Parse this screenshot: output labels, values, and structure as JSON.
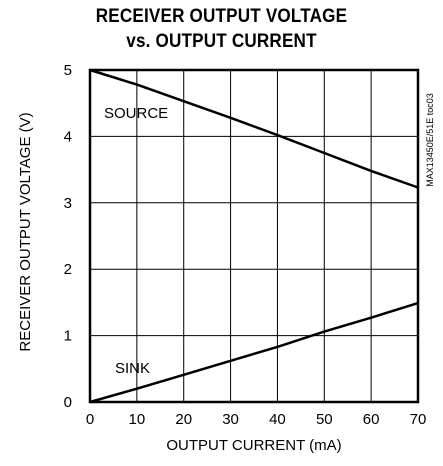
{
  "chart_data": {
    "type": "line",
    "title": [
      "RECEIVER OUTPUT VOLTAGE",
      "vs. OUTPUT CURRENT"
    ],
    "xlabel": "OUTPUT CURRENT (mA)",
    "ylabel": "RECEIVER OUTPUT VOLTAGE (V)",
    "xlim": [
      0,
      70
    ],
    "ylim": [
      0,
      5
    ],
    "x_ticks": [
      0,
      10,
      20,
      30,
      40,
      50,
      60,
      70
    ],
    "y_ticks": [
      0,
      1,
      2,
      3,
      4,
      5
    ],
    "grid": true,
    "series": [
      {
        "name": "SOURCE",
        "x": [
          0,
          10,
          20,
          30,
          40,
          50,
          60,
          70
        ],
        "y": [
          5.0,
          4.78,
          4.53,
          4.28,
          4.02,
          3.75,
          3.48,
          3.23
        ]
      },
      {
        "name": "SINK",
        "x": [
          0,
          10,
          20,
          30,
          40,
          50,
          60,
          70
        ],
        "y": [
          0.0,
          0.2,
          0.41,
          0.62,
          0.83,
          1.06,
          1.27,
          1.49
        ]
      }
    ],
    "side_code": "MAX13450E/51E toc03"
  }
}
